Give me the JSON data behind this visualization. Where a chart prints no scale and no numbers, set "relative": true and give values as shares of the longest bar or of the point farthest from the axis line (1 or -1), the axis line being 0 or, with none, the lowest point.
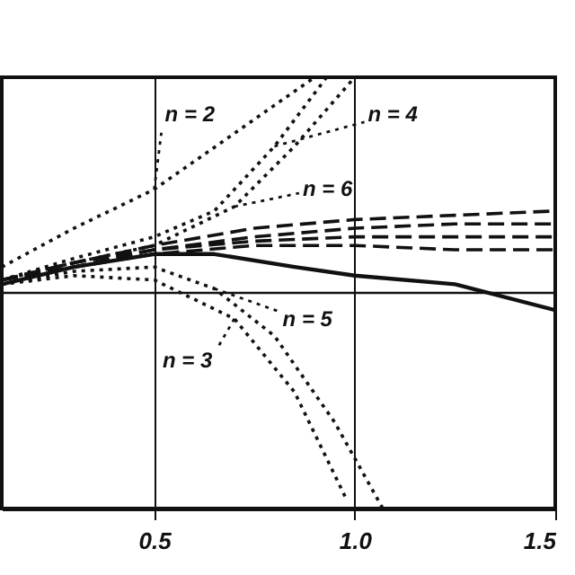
{
  "chart_data": {
    "type": "line",
    "relative": true,
    "xlim": [
      0.12,
      1.5
    ],
    "xticks": [
      0.5,
      {
        "value": 1.0,
        "label": "1.0"
      },
      1.5
    ],
    "grid": "x",
    "color": "#111111",
    "series": [
      {
        "name": "n = 2",
        "line_style": "dotted",
        "x": [
          0.12,
          0.3,
          0.5,
          0.9
        ],
        "values": [
          0.56,
          0.65,
          0.74,
          1.0
        ]
      },
      {
        "name": "n = 4",
        "line_style": "dotted",
        "x": [
          0.12,
          0.3,
          0.5,
          0.65,
          0.8,
          0.93
        ],
        "values": [
          0.53,
          0.58,
          0.63,
          0.69,
          0.84,
          1.0
        ]
      },
      {
        "name": "n = 6",
        "line_style": "dotted",
        "x": [
          0.12,
          0.3,
          0.5,
          0.7,
          0.85,
          1.0
        ],
        "values": [
          0.53,
          0.57,
          0.61,
          0.7,
          0.84,
          1.0
        ]
      },
      {
        "line_style": "dashed",
        "x": [
          0.12,
          0.3,
          0.5,
          0.75,
          1.0,
          1.25,
          1.5
        ],
        "values": [
          0.53,
          0.57,
          0.61,
          0.65,
          0.67,
          0.68,
          0.69
        ]
      },
      {
        "line_style": "dashed",
        "x": [
          0.12,
          0.3,
          0.5,
          0.75,
          1.0,
          1.25,
          1.5
        ],
        "values": [
          0.53,
          0.57,
          0.6,
          0.63,
          0.65,
          0.66,
          0.66
        ]
      },
      {
        "line_style": "dashed",
        "x": [
          0.12,
          0.3,
          0.5,
          0.75,
          1.0,
          1.25,
          1.5
        ],
        "values": [
          0.53,
          0.56,
          0.6,
          0.62,
          0.63,
          0.63,
          0.63
        ]
      },
      {
        "line_style": "dashed",
        "x": [
          0.12,
          0.3,
          0.5,
          0.75,
          1.0,
          1.25,
          1.5
        ],
        "values": [
          0.53,
          0.56,
          0.59,
          0.61,
          0.61,
          0.6,
          0.6
        ]
      },
      {
        "line_style": "solid",
        "x": [
          0.12,
          0.3,
          0.5,
          0.65,
          0.85,
          1.0,
          1.25,
          1.5
        ],
        "values": [
          0.52,
          0.56,
          0.59,
          0.59,
          0.56,
          0.54,
          0.52,
          0.46
        ]
      },
      {
        "name": "n = 3",
        "line_style": "dotted",
        "x": [
          0.12,
          0.3,
          0.5,
          0.7,
          0.85,
          0.98
        ],
        "values": [
          0.52,
          0.54,
          0.53,
          0.44,
          0.27,
          0.02
        ]
      },
      {
        "name": "n = 5",
        "line_style": "dotted",
        "x": [
          0.12,
          0.3,
          0.5,
          0.65,
          0.8,
          0.95,
          1.07
        ],
        "values": [
          0.52,
          0.55,
          0.56,
          0.51,
          0.4,
          0.2,
          0.0
        ]
      }
    ],
    "ref_lines": [
      {
        "axis": "y",
        "value": 0.5
      }
    ]
  }
}
